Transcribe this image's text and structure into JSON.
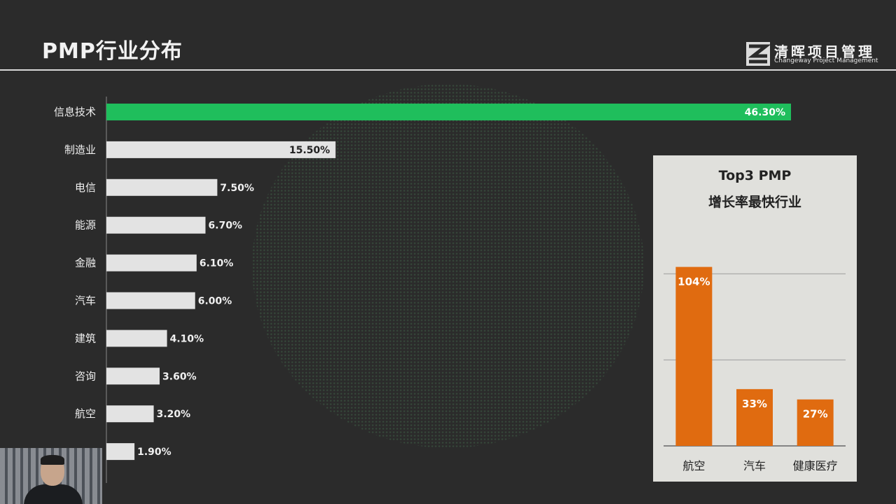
{
  "header": {
    "title": "PMP行业分布",
    "logo_cn": "清晖项目管理",
    "logo_en": "Changeway Project Management"
  },
  "chart_data": [
    {
      "type": "bar",
      "orientation": "horizontal",
      "categories": [
        "信息技术",
        "制造业",
        "电信",
        "能源",
        "金融",
        "汽车",
        "建筑",
        "咨询",
        "航空",
        ""
      ],
      "values": [
        46.3,
        15.5,
        7.5,
        6.7,
        6.1,
        6.0,
        4.1,
        3.6,
        3.2,
        1.9
      ],
      "value_labels": [
        "46.30%",
        "15.50%",
        "7.50%",
        "6.70%",
        "6.10%",
        "6.00%",
        "4.10%",
        "3.60%",
        "3.20%",
        "1.90%"
      ],
      "highlight_index": 0,
      "colors": {
        "highlight": "#1fbe5c",
        "default": "#e3e3e3"
      },
      "xlim": [
        0,
        46.3
      ]
    },
    {
      "type": "bar",
      "title": "Top3 PMP",
      "subtitle": "增长率最快行业",
      "categories": [
        "航空",
        "汽车",
        "健康医疗"
      ],
      "values": [
        104,
        33,
        27
      ],
      "value_labels": [
        "104%",
        "33%",
        "27%"
      ],
      "color": "#e06b10",
      "ylim": [
        0,
        120
      ],
      "gridlines": [
        50,
        100
      ]
    }
  ]
}
